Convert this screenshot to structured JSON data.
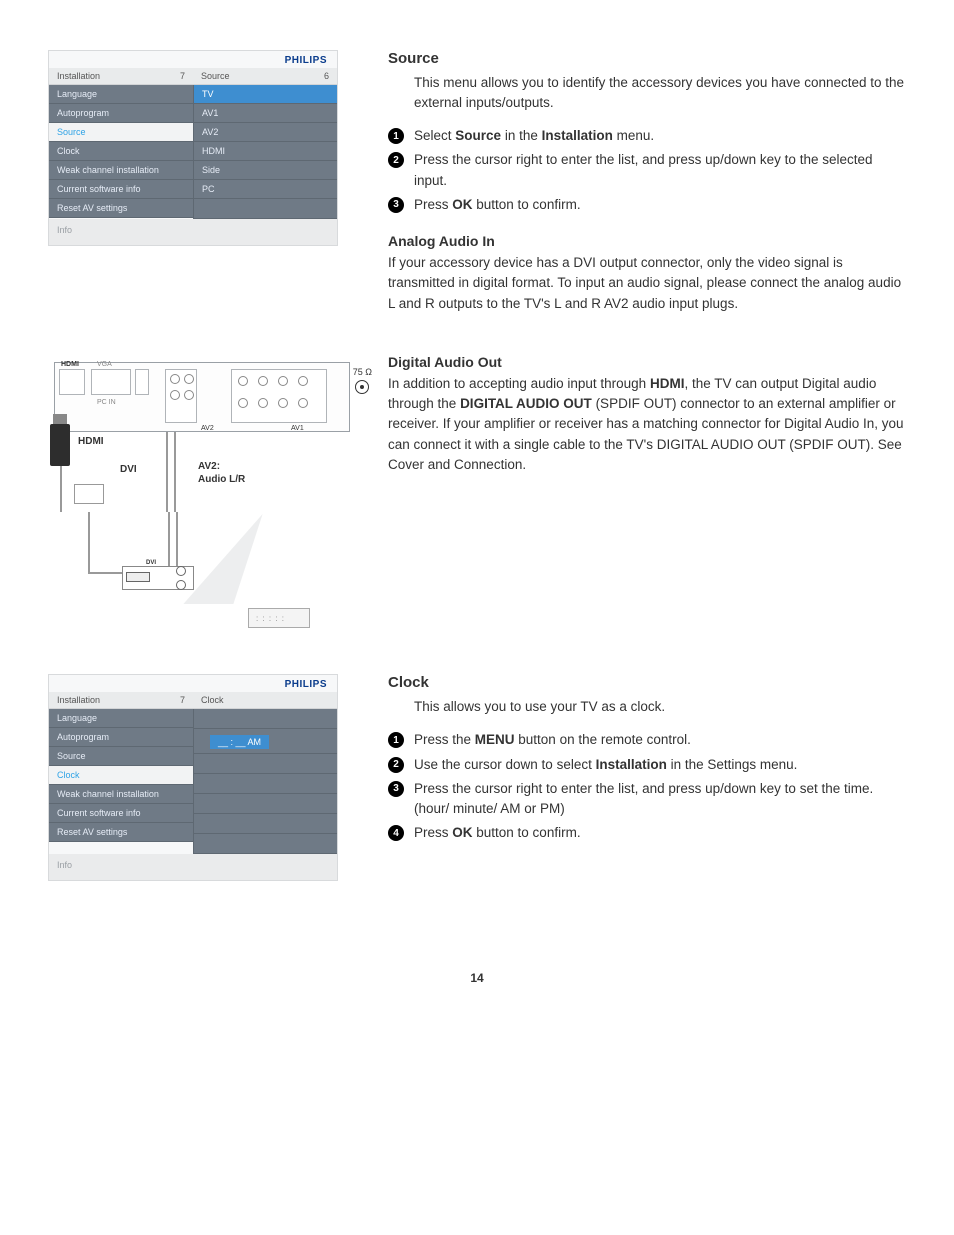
{
  "brand": "PHILIPS",
  "pageNumber": "14",
  "menu1": {
    "leftTitle": "Installation",
    "leftCount": "7",
    "rightTitle": "Source",
    "rightCount": "6",
    "leftItems": [
      "Language",
      "Autoprogram",
      "Source",
      "Clock",
      "Weak channel installation",
      "Current software info",
      "Reset AV settings"
    ],
    "highlightIndex": 2,
    "rightItems": [
      "TV",
      "AV1",
      "AV2",
      "HDMI",
      "Side",
      "PC"
    ],
    "info": "Info"
  },
  "menu2": {
    "leftTitle": "Installation",
    "leftCount": "7",
    "rightTitle": "Clock",
    "rightCount": "",
    "leftItems": [
      "Language",
      "Autoprogram",
      "Source",
      "Clock",
      "Weak channel installation",
      "Current software info",
      "Reset AV settings"
    ],
    "highlightIndex": 3,
    "clockValue": "__  :  __  AM",
    "info": "Info"
  },
  "diagram": {
    "hdmi": "HDMI",
    "vga": "VGA",
    "pcin": "PC IN",
    "av2": "AV2",
    "av1": "AV1",
    "hdmiLabel": "HDMI",
    "dviLabel": "DVI",
    "av2Audio1": "AV2:",
    "av2Audio2": "Audio L/R",
    "ohm": "75 Ω",
    "dviPort": "DVI"
  },
  "source": {
    "title": "Source",
    "intro": "This menu allows you to identify the accessory devices you have connected to the external inputs/outputs.",
    "s1a": "Select ",
    "s1b": "Source",
    "s1c": " in the ",
    "s1d": "Installation",
    "s1e": " menu.",
    "s2": "Press the cursor right to enter the list, and press up/down key to the selected input.",
    "s3a": "Press ",
    "s3b": "OK",
    "s3c": " button to confirm."
  },
  "analog": {
    "title": "Analog Audio In",
    "body": "If your accessory device has a DVI output connector, only the video signal is transmitted in digital format. To input an audio signal, please connect the analog audio L and R outputs to the TV's L and R AV2 audio input plugs."
  },
  "digital": {
    "title": "Digital Audio Out",
    "b1": "In addition to accepting audio input through ",
    "b2": "HDMI",
    "b3": ", the TV can output Digital audio through the ",
    "b4": "DIGITAL AUDIO OUT",
    "b5": " (SPDIF OUT) connector to an external amplifier or receiver. If your amplifier or receiver has a matching connector for Digital Audio In, you can connect it with a single cable to the TV's DIGITAL AUDIO OUT (SPDIF OUT). See Cover and Connection."
  },
  "clock": {
    "title": "Clock",
    "intro": "This allows you to use your TV as a clock.",
    "s1a": "Press the ",
    "s1b": "MENU",
    "s1c": " button on the remote control.",
    "s2a": "Use the cursor down to select ",
    "s2b": "Installation",
    "s2c": " in the Settings menu.",
    "s3": "Press the cursor right to enter the list, and press up/down key to set the time. (hour/ minute/ AM or PM)",
    "s4a": "Press ",
    "s4b": "OK",
    "s4c": " button to confirm."
  }
}
